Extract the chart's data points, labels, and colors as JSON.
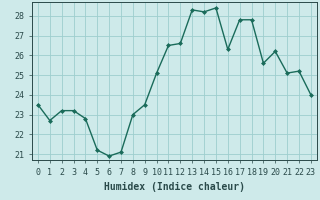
{
  "x": [
    0,
    1,
    2,
    3,
    4,
    5,
    6,
    7,
    8,
    9,
    10,
    11,
    12,
    13,
    14,
    15,
    16,
    17,
    18,
    19,
    20,
    21,
    22,
    23
  ],
  "y": [
    23.5,
    22.7,
    23.2,
    23.2,
    22.8,
    21.2,
    20.9,
    21.1,
    23.0,
    23.5,
    25.1,
    26.5,
    26.6,
    28.3,
    28.2,
    28.4,
    26.3,
    27.8,
    27.8,
    25.6,
    26.2,
    25.1,
    25.2,
    24.0
  ],
  "line_color": "#1a6b5a",
  "marker": "D",
  "marker_size": 2,
  "bg_color": "#ceeaea",
  "grid_color": "#9ecece",
  "ylim_min": 20.7,
  "ylim_max": 28.7,
  "yticks": [
    21,
    22,
    23,
    24,
    25,
    26,
    27,
    28
  ],
  "xlim_min": -0.5,
  "xlim_max": 23.5,
  "xticks": [
    0,
    1,
    2,
    3,
    4,
    5,
    6,
    7,
    8,
    9,
    10,
    11,
    12,
    13,
    14,
    15,
    16,
    17,
    18,
    19,
    20,
    21,
    22,
    23
  ],
  "xlabel": "Humidex (Indice chaleur)",
  "xlabel_fontsize": 7,
  "tick_fontsize": 6,
  "line_width": 1.0,
  "tick_color": "#2a4a4a",
  "spine_color": "#2a4a4a"
}
